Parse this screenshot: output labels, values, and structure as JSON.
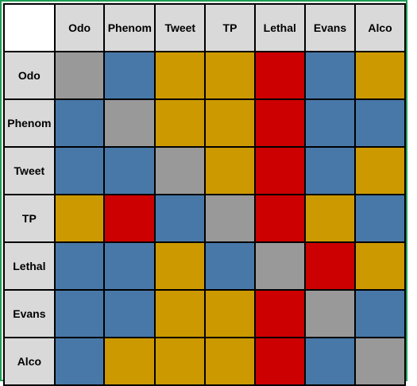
{
  "matrix": {
    "columns": [
      "Odo",
      "Phenom",
      "Tweet",
      "TP",
      "Lethal",
      "Evans",
      "Alco"
    ],
    "rows": [
      {
        "label": "Odo",
        "cells": [
          "gray",
          "blue",
          "gold",
          "gold",
          "red",
          "blue",
          "gold"
        ]
      },
      {
        "label": "Phenom",
        "cells": [
          "blue",
          "gray",
          "gold",
          "gold",
          "red",
          "blue",
          "blue"
        ]
      },
      {
        "label": "Tweet",
        "cells": [
          "blue",
          "blue",
          "gray",
          "gold",
          "red",
          "blue",
          "gold"
        ]
      },
      {
        "label": "TP",
        "cells": [
          "gold",
          "red",
          "blue",
          "gray",
          "red",
          "gold",
          "blue"
        ]
      },
      {
        "label": "Lethal",
        "cells": [
          "blue",
          "blue",
          "gold",
          "blue",
          "gray",
          "red",
          "gold"
        ]
      },
      {
        "label": "Evans",
        "cells": [
          "blue",
          "blue",
          "gold",
          "gold",
          "red",
          "gray",
          "blue"
        ]
      },
      {
        "label": "Alco",
        "cells": [
          "blue",
          "gold",
          "gold",
          "gold",
          "red",
          "blue",
          "gray"
        ]
      }
    ]
  },
  "colors": {
    "gray": "#999999",
    "blue": "#4878a8",
    "gold": "#cc9900",
    "red": "#cc0000",
    "header_bg": "#d9d9d9",
    "border": "#000000",
    "frame": "#1f9d55"
  }
}
